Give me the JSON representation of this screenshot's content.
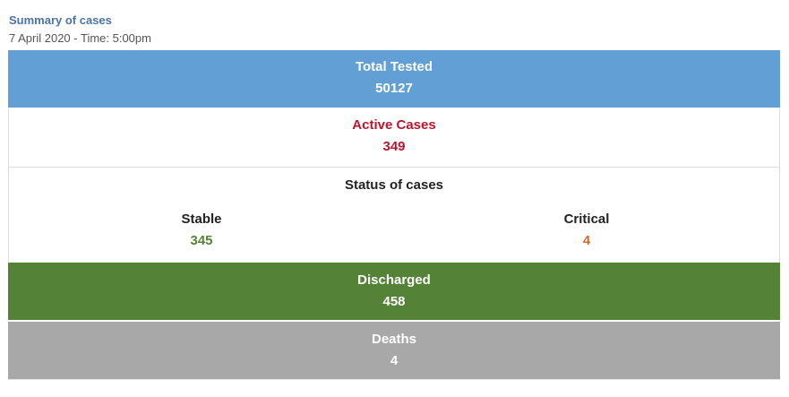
{
  "header": {
    "title": "Summary of cases",
    "subtitle": "7 April 2020 - Time: 5:00pm"
  },
  "total_tested": {
    "label": "Total Tested",
    "value": "50127",
    "color": "#629fd4"
  },
  "active_cases": {
    "label": "Active Cases",
    "value": "349",
    "color": "#c0142c"
  },
  "status_of_cases": {
    "label": "Status of cases",
    "stable": {
      "label": "Stable",
      "value": "345",
      "color": "#548237"
    },
    "critical": {
      "label": "Critical",
      "value": "4",
      "color": "#d6692b"
    }
  },
  "discharged": {
    "label": "Discharged",
    "value": "458",
    "color": "#548237"
  },
  "deaths": {
    "label": "Deaths",
    "value": "4",
    "color": "#a8a8a8"
  }
}
